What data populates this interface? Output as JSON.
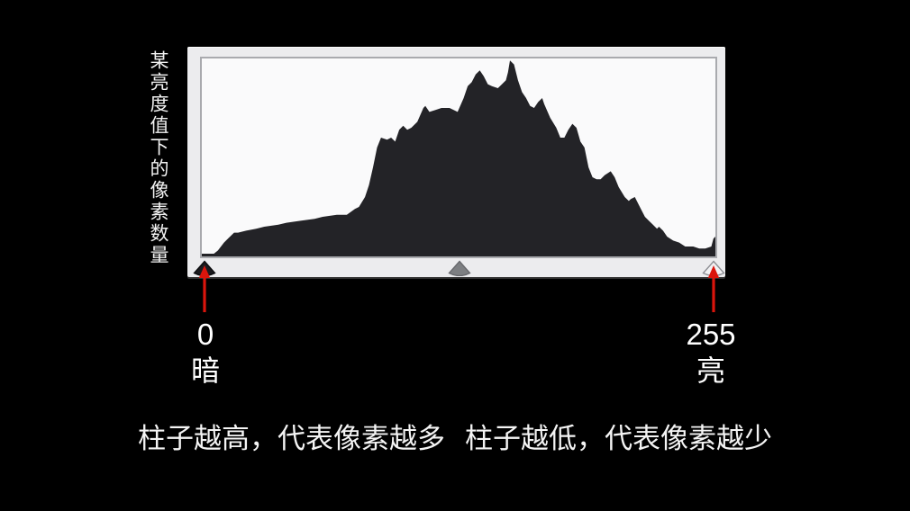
{
  "y_axis_label": "某亮度值下的像素数量",
  "scale": {
    "min_value": "0",
    "min_word": "暗",
    "max_value": "255",
    "max_word": "亮"
  },
  "caption": {
    "first": "柱子越高，代表像素越多",
    "second": "柱子越低，代表像素越少"
  },
  "sliders": [
    {
      "name": "shadow-slider",
      "position": "left",
      "color": "#1a1a1e"
    },
    {
      "name": "midtone-slider",
      "position": "center",
      "color": "#7d7f82"
    },
    {
      "name": "highlight-slider",
      "position": "right",
      "color": "#f2f2f4"
    }
  ],
  "colors": {
    "background": "#000000",
    "panel": "#ececee",
    "chart_background": "#fafafb",
    "chart_border": "#a9aaae",
    "histogram_fill": "#232327",
    "arrow_red": "#da150c",
    "text": "#f2f2f2"
  },
  "chart_data": {
    "type": "area",
    "title": "",
    "xlabel": "",
    "ylabel": "某亮度值下的像素数量",
    "xlim": [
      0,
      255
    ],
    "ylim": [
      0,
      100
    ],
    "grid": false,
    "legend": false,
    "x_ticks": [
      {
        "value": "0",
        "label": "暗"
      },
      {
        "value": "255",
        "label": "亮"
      }
    ],
    "x": [
      0,
      6,
      8,
      11,
      14,
      16,
      18,
      22,
      27,
      31,
      38,
      42,
      49,
      56,
      60,
      67,
      72,
      76,
      78,
      81,
      83,
      85,
      87,
      89,
      92,
      94,
      96,
      98,
      100,
      102,
      104,
      107,
      110,
      111,
      113,
      116,
      119,
      123,
      127,
      130,
      132,
      134,
      136,
      138,
      140,
      142,
      144,
      147,
      149,
      151,
      152,
      153,
      155,
      157,
      159,
      161,
      163,
      165,
      167,
      169,
      170,
      173,
      176,
      178,
      180,
      182,
      184,
      186,
      188,
      190,
      192,
      194,
      196,
      198,
      200,
      203,
      205,
      207,
      210,
      212,
      213,
      215,
      216,
      218,
      220,
      222,
      224,
      226,
      227,
      229,
      231,
      234,
      237,
      240,
      244,
      247,
      250,
      253,
      254,
      255
    ],
    "values": [
      0,
      1,
      3,
      7,
      10,
      12,
      12,
      13,
      14,
      15,
      16,
      17,
      18,
      19,
      20,
      21,
      21,
      24,
      25,
      30,
      36,
      45,
      55,
      60,
      59,
      60,
      58,
      64,
      66,
      64,
      65,
      68,
      75,
      76,
      73,
      74,
      75,
      75,
      73,
      80,
      86,
      88,
      92,
      94,
      91,
      87,
      86,
      85,
      87,
      89,
      93,
      99,
      97,
      89,
      83,
      80,
      76,
      75,
      78,
      80,
      77,
      70,
      65,
      60,
      60,
      64,
      67,
      65,
      58,
      55,
      45,
      40,
      39,
      39,
      41,
      43,
      40,
      35,
      30,
      28,
      29,
      30,
      28,
      24,
      20,
      18,
      16,
      14,
      15,
      13,
      10,
      8,
      7,
      5,
      5,
      4,
      4,
      5,
      9,
      10
    ]
  }
}
